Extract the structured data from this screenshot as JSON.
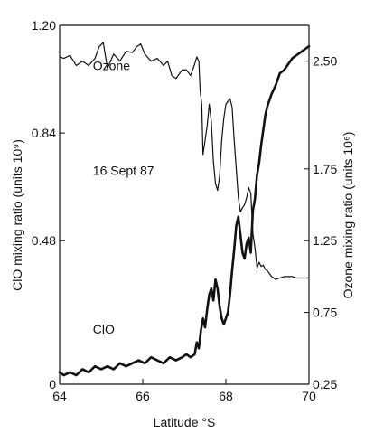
{
  "chart_data": {
    "type": "line",
    "title": "",
    "xlabel": "Latitude °S",
    "ylabel_left": "ClO mixing ratio (units 10⁹)",
    "ylabel_right": "Ozone mixing ratio (units 10⁶)",
    "xlim": [
      64,
      70
    ],
    "ylim_left": [
      0,
      1.2
    ],
    "ylim_right": [
      0.25,
      2.75
    ],
    "x_ticks": [
      "64",
      "66",
      "68",
      "70"
    ],
    "y_left_ticks": [
      "0",
      "0.48",
      "0.84",
      "1.20"
    ],
    "y_right_ticks": [
      "0.25",
      "0.75",
      "1.25",
      "1.75",
      "2.50"
    ],
    "annotations": [
      {
        "text": "Ozone",
        "x": 64.8,
        "y_left": 1.05
      },
      {
        "text": "16 Sept 87",
        "x": 64.8,
        "y_left": 0.7
      },
      {
        "text": "ClO",
        "x": 64.8,
        "y_left": 0.17
      }
    ],
    "series": [
      {
        "name": "Ozone",
        "axis": "right",
        "color": "#111111",
        "stroke_width": 1.2,
        "x": [
          64.0,
          64.1,
          64.25,
          64.4,
          64.55,
          64.7,
          64.85,
          64.95,
          65.05,
          65.15,
          65.3,
          65.45,
          65.6,
          65.75,
          65.85,
          65.95,
          66.05,
          66.2,
          66.35,
          66.5,
          66.6,
          66.7,
          66.8,
          66.95,
          67.05,
          67.15,
          67.25,
          67.3,
          67.35,
          67.38,
          67.42,
          67.45,
          67.5,
          67.55,
          67.6,
          67.65,
          67.7,
          67.75,
          67.8,
          67.85,
          67.9,
          67.95,
          68.0,
          68.05,
          68.1,
          68.15,
          68.2,
          68.25,
          68.3,
          68.35,
          68.4,
          68.45,
          68.5,
          68.55,
          68.6,
          68.65,
          68.7,
          68.75,
          68.8,
          68.85,
          68.9,
          68.95,
          69.0,
          69.1,
          69.2,
          69.3,
          69.4,
          69.5,
          69.6,
          69.7,
          69.8,
          69.9,
          70.0
        ],
        "values": [
          2.53,
          2.52,
          2.54,
          2.47,
          2.5,
          2.47,
          2.52,
          2.6,
          2.63,
          2.45,
          2.55,
          2.5,
          2.57,
          2.56,
          2.6,
          2.62,
          2.55,
          2.5,
          2.52,
          2.47,
          2.5,
          2.4,
          2.38,
          2.44,
          2.44,
          2.4,
          2.48,
          2.53,
          2.5,
          2.3,
          2.2,
          1.85,
          1.95,
          2.05,
          2.2,
          2.08,
          1.8,
          1.65,
          1.6,
          1.7,
          1.95,
          2.1,
          2.2,
          2.22,
          2.24,
          2.18,
          1.95,
          1.75,
          1.55,
          1.45,
          1.48,
          1.5,
          1.55,
          1.62,
          1.58,
          1.3,
          1.2,
          1.06,
          1.1,
          1.07,
          1.08,
          1.05,
          1.04,
          1.0,
          0.98,
          0.99,
          1.0,
          1.0,
          1.0,
          0.99,
          0.99,
          0.99,
          0.99
        ]
      },
      {
        "name": "ClO",
        "axis": "left",
        "color": "#111111",
        "stroke_width": 2.6,
        "x": [
          64.0,
          64.1,
          64.25,
          64.4,
          64.55,
          64.7,
          64.85,
          65.0,
          65.15,
          65.3,
          65.45,
          65.6,
          65.75,
          65.9,
          66.05,
          66.2,
          66.35,
          66.5,
          66.65,
          66.8,
          66.95,
          67.05,
          67.15,
          67.25,
          67.3,
          67.35,
          67.4,
          67.45,
          67.5,
          67.55,
          67.6,
          67.65,
          67.7,
          67.75,
          67.8,
          67.85,
          67.9,
          67.95,
          68.0,
          68.05,
          68.1,
          68.15,
          68.2,
          68.25,
          68.3,
          68.35,
          68.4,
          68.45,
          68.5,
          68.55,
          68.6,
          68.65,
          68.7,
          68.75,
          68.8,
          68.85,
          68.9,
          68.95,
          69.0,
          69.1,
          69.2,
          69.3,
          69.4,
          69.5,
          69.6,
          69.7,
          69.8,
          69.9,
          70.0
        ],
        "values": [
          0.04,
          0.03,
          0.04,
          0.03,
          0.05,
          0.04,
          0.06,
          0.05,
          0.06,
          0.05,
          0.07,
          0.06,
          0.07,
          0.08,
          0.07,
          0.09,
          0.08,
          0.07,
          0.09,
          0.08,
          0.09,
          0.1,
          0.09,
          0.1,
          0.14,
          0.12,
          0.18,
          0.22,
          0.19,
          0.25,
          0.3,
          0.32,
          0.28,
          0.35,
          0.32,
          0.26,
          0.22,
          0.2,
          0.22,
          0.24,
          0.3,
          0.38,
          0.45,
          0.53,
          0.56,
          0.5,
          0.44,
          0.42,
          0.47,
          0.49,
          0.44,
          0.58,
          0.62,
          0.7,
          0.74,
          0.8,
          0.85,
          0.9,
          0.93,
          0.97,
          1.0,
          1.04,
          1.05,
          1.07,
          1.09,
          1.1,
          1.11,
          1.12,
          1.13
        ]
      }
    ]
  }
}
